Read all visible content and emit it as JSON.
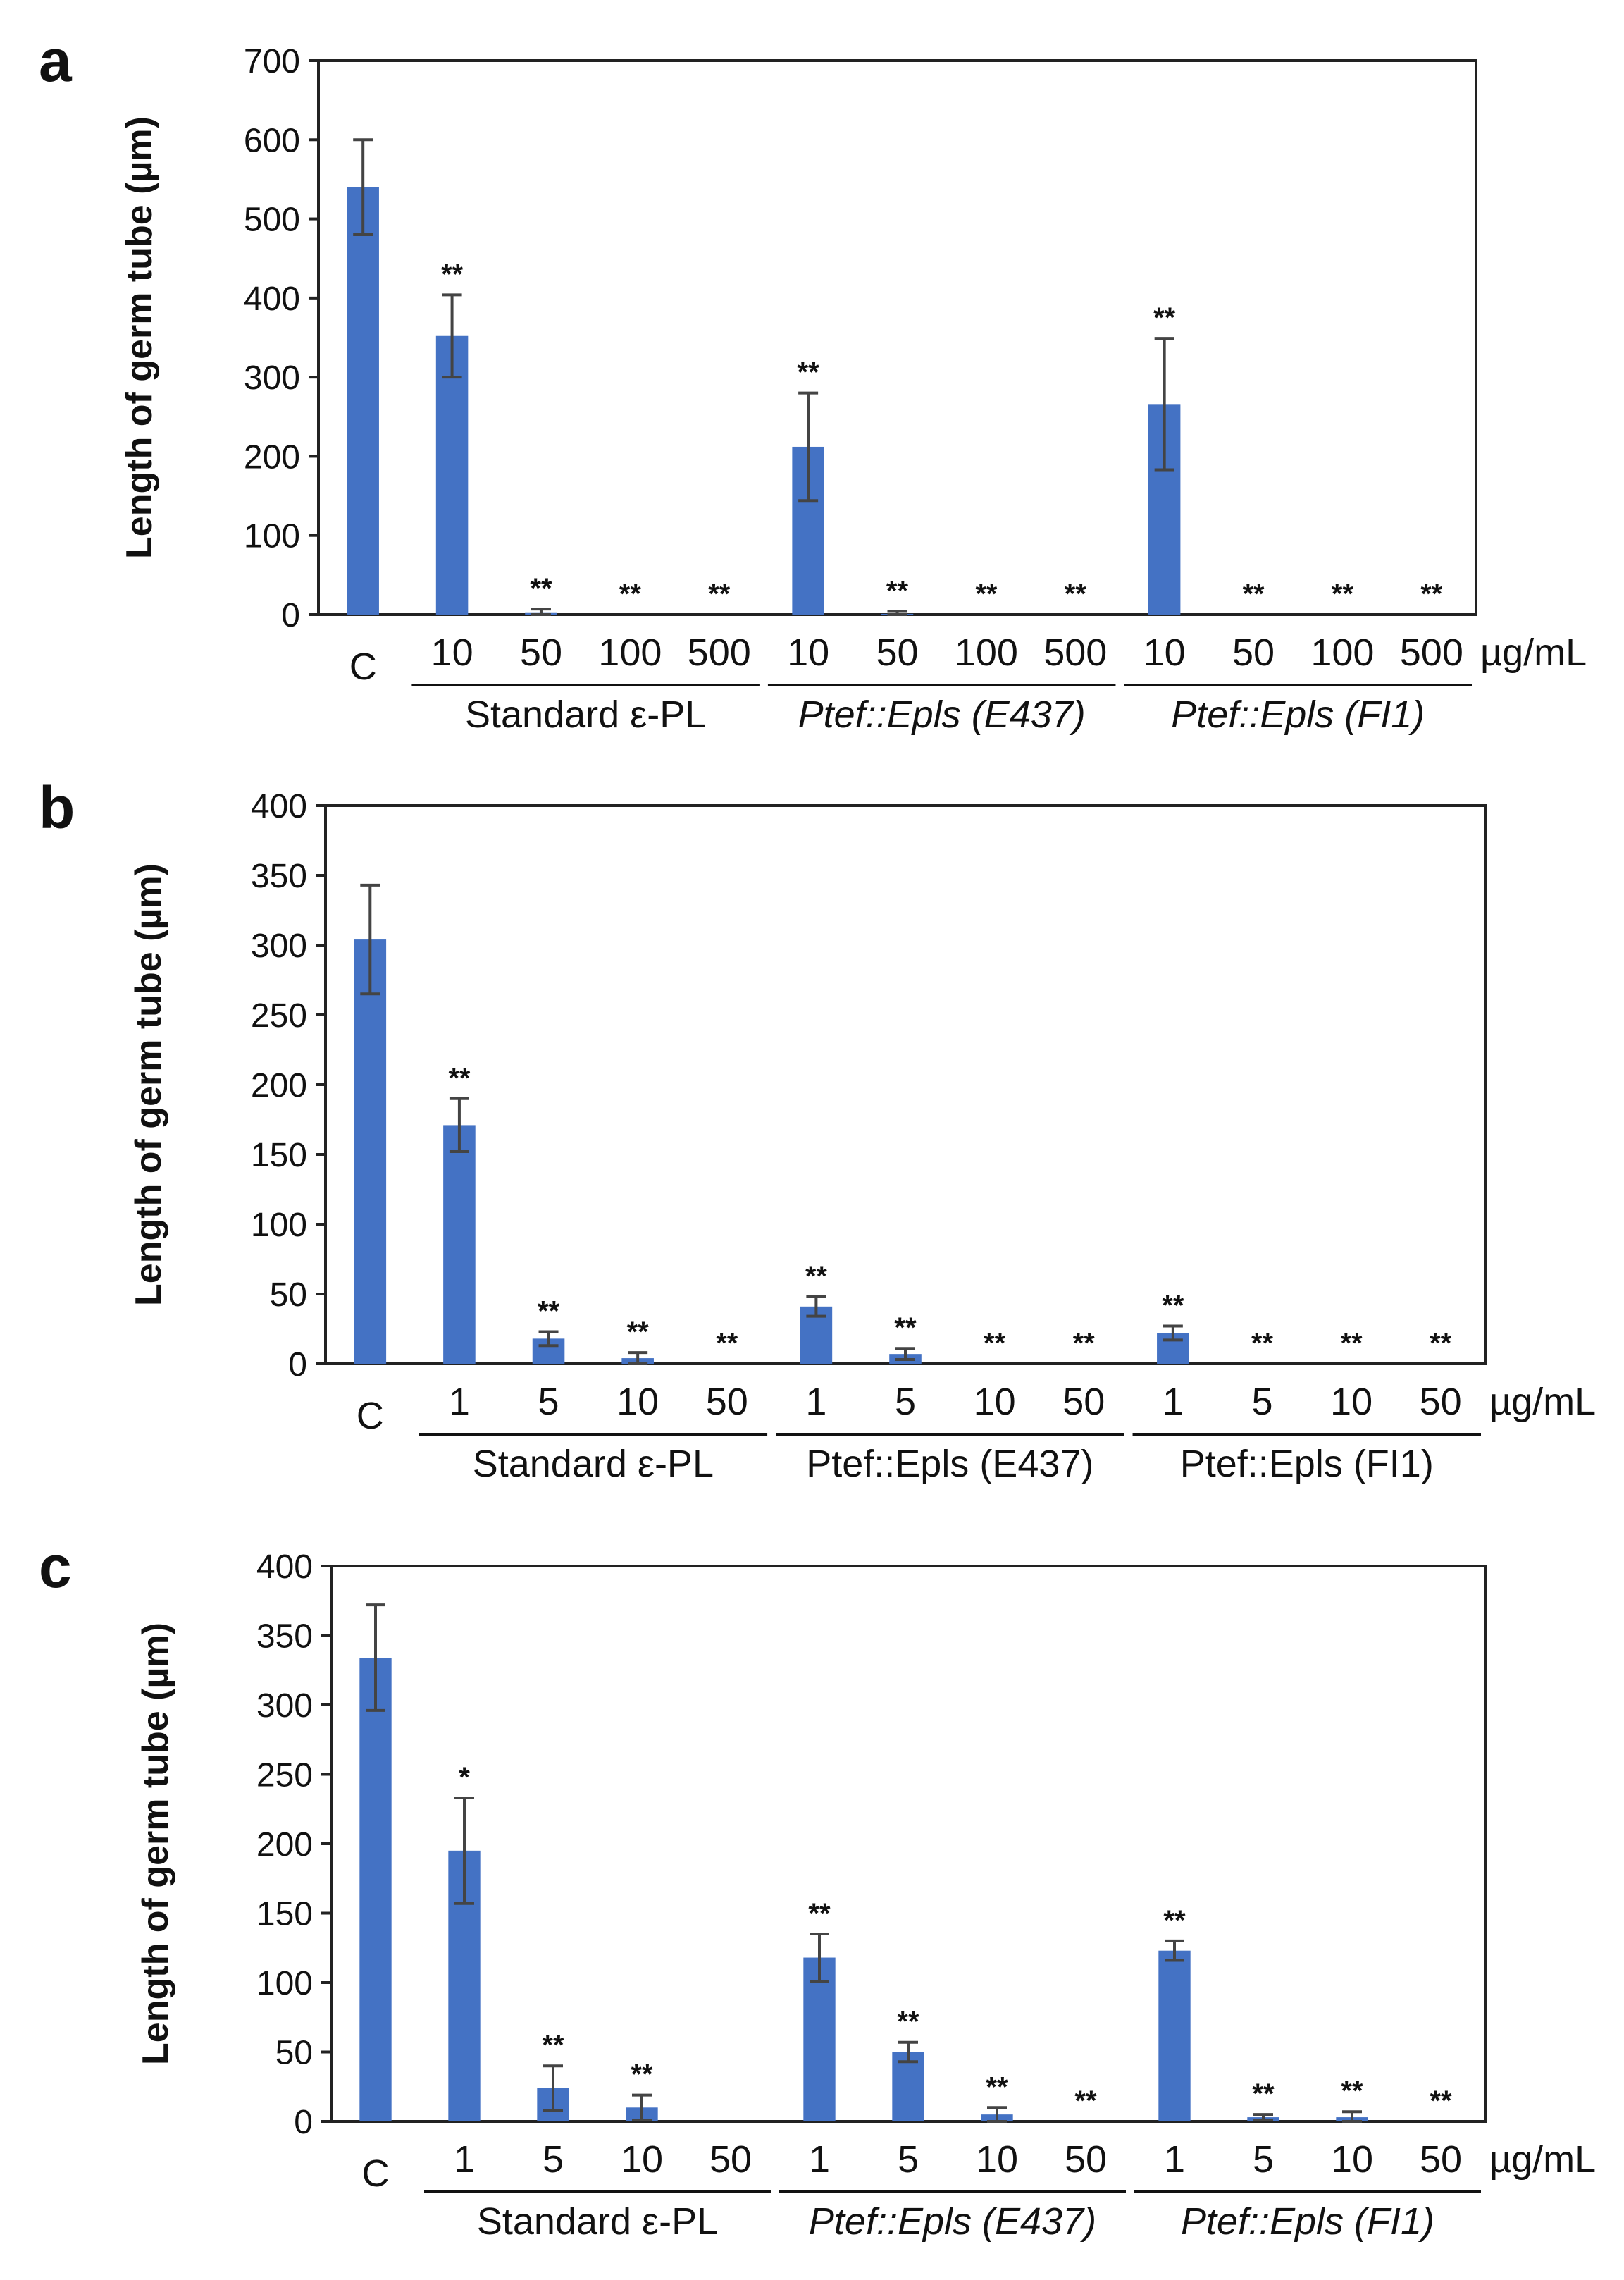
{
  "colors": {
    "bar": "#4472C4",
    "axis": "#222222",
    "error": "#444444"
  },
  "unit_label": "µg/mL",
  "chart_data": [
    {
      "panel": "a",
      "type": "bar",
      "ylabel": "Length of germ tube (µm)",
      "ylim": [
        0,
        700
      ],
      "yticks": [
        0,
        100,
        200,
        300,
        400,
        500,
        600,
        700
      ],
      "categories": [
        "C",
        "10",
        "50",
        "100",
        "500",
        "10",
        "50",
        "100",
        "500",
        "10",
        "50",
        "100",
        "500"
      ],
      "values": [
        540,
        352,
        2,
        0,
        0,
        212,
        1,
        0,
        0,
        266,
        0,
        0,
        0
      ],
      "errors": [
        60,
        52,
        5,
        0,
        0,
        68,
        3,
        0,
        0,
        83,
        0,
        0,
        0
      ],
      "significance": [
        "",
        "**",
        "**",
        "**",
        "**",
        "**",
        "**",
        "**",
        "**",
        "**",
        "**",
        "**",
        "**"
      ],
      "groups": [
        {
          "label": "Standard ε-PL",
          "italic": false,
          "start": 1,
          "end": 4
        },
        {
          "label": "Ptef::Epls (E437)",
          "italic": true,
          "start": 5,
          "end": 8
        },
        {
          "label": "Ptef::Epls (FI1)",
          "italic": true,
          "start": 9,
          "end": 12
        }
      ]
    },
    {
      "panel": "b",
      "type": "bar",
      "ylabel": "Length of germ tube (µm)",
      "ylim": [
        0,
        400
      ],
      "yticks": [
        0,
        50,
        100,
        150,
        200,
        250,
        300,
        350,
        400
      ],
      "categories": [
        "C",
        "1",
        "5",
        "10",
        "50",
        "1",
        "5",
        "10",
        "50",
        "1",
        "5",
        "10",
        "50"
      ],
      "values": [
        304,
        171,
        18,
        4,
        0,
        41,
        7,
        0,
        0,
        22,
        0,
        0,
        0
      ],
      "errors": [
        39,
        19,
        5,
        4,
        0,
        7,
        4,
        0,
        0,
        5,
        0,
        0,
        0
      ],
      "significance": [
        "",
        "**",
        "**",
        "**",
        "**",
        "**",
        "**",
        "**",
        "**",
        "**",
        "**",
        "**",
        "**"
      ],
      "groups": [
        {
          "label": "Standard ε-PL",
          "italic": false,
          "start": 1,
          "end": 4
        },
        {
          "label": "Ptef::Epls (E437)",
          "italic": false,
          "start": 5,
          "end": 8
        },
        {
          "label": "Ptef::Epls (FI1)",
          "italic": false,
          "start": 9,
          "end": 12
        }
      ]
    },
    {
      "panel": "c",
      "type": "bar",
      "ylabel": "Length of germ tube (µm)",
      "ylim": [
        0,
        400
      ],
      "yticks": [
        0,
        50,
        100,
        150,
        200,
        250,
        300,
        350,
        400
      ],
      "categories": [
        "C",
        "1",
        "5",
        "10",
        "50",
        "1",
        "5",
        "10",
        "50",
        "1",
        "5",
        "10",
        "50"
      ],
      "values": [
        334,
        195,
        24,
        10,
        0,
        118,
        50,
        5,
        0,
        123,
        3,
        3,
        0
      ],
      "errors": [
        38,
        38,
        16,
        9,
        0,
        17,
        7,
        5,
        0,
        7,
        2,
        4,
        0
      ],
      "significance": [
        "",
        "*",
        "**",
        "**",
        "",
        "**",
        "**",
        "**",
        "**",
        "**",
        "**",
        "**",
        "**"
      ],
      "groups": [
        {
          "label": "Standard ε-PL",
          "italic": false,
          "start": 1,
          "end": 4
        },
        {
          "label": "Ptef::Epls (E437)",
          "italic": true,
          "start": 5,
          "end": 8
        },
        {
          "label": "Ptef::Epls (FI1)",
          "italic": true,
          "start": 9,
          "end": 12
        }
      ]
    }
  ]
}
